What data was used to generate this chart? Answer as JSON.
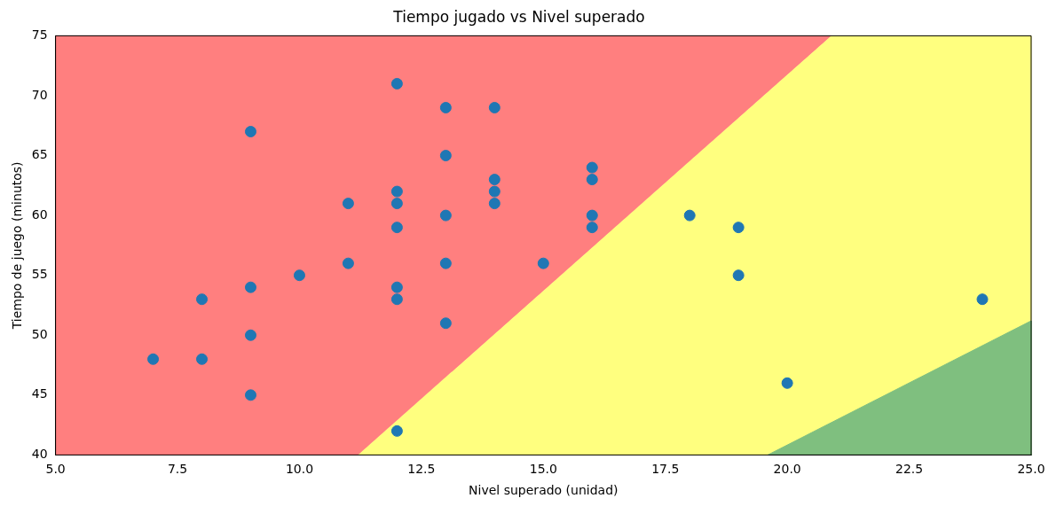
{
  "chart_data": {
    "type": "scatter",
    "title": "Tiempo jugado vs Nivel superado",
    "xlabel": "Nivel superado (unidad)",
    "ylabel": "Tiempo de juego (minutos)",
    "xlim": [
      5,
      25
    ],
    "ylim": [
      40,
      75
    ],
    "xticks": [
      {
        "value": 5,
        "label": "5.0"
      },
      {
        "value": 7.5,
        "label": "7.5"
      },
      {
        "value": 10,
        "label": "10.0"
      },
      {
        "value": 12.5,
        "label": "12.5"
      },
      {
        "value": 15,
        "label": "15.0"
      },
      {
        "value": 17.5,
        "label": "17.5"
      },
      {
        "value": 20,
        "label": "20.0"
      },
      {
        "value": 22.5,
        "label": "22.5"
      },
      {
        "value": 25,
        "label": "25.0"
      }
    ],
    "yticks": [
      40,
      45,
      50,
      55,
      60,
      65,
      70,
      75
    ],
    "grid": false,
    "legend": false,
    "series": [
      {
        "type": "area",
        "color": "#ff7f7f",
        "x": [
          5,
          11.2,
          20.9,
          5
        ],
        "values": [
          40,
          40,
          75,
          75
        ]
      },
      {
        "type": "area",
        "color": "#ffff7f",
        "x": [
          11.2,
          19.6,
          25,
          25,
          20.9
        ],
        "values": [
          40,
          40,
          51.2,
          75,
          75
        ]
      },
      {
        "type": "area",
        "color": "#7fbf7f",
        "x": [
          19.6,
          25,
          25
        ],
        "values": [
          40,
          51.2,
          40
        ]
      },
      {
        "type": "scatter",
        "color": "#1f77b4",
        "marker": "circle",
        "x": [
          7,
          8,
          8,
          9,
          9,
          9,
          9,
          10,
          11,
          11,
          12,
          12,
          12,
          12,
          12,
          12,
          12,
          13,
          13,
          13,
          13,
          13,
          14,
          14,
          14,
          14,
          15,
          16,
          16,
          16,
          16,
          18,
          19,
          19,
          20,
          24
        ],
        "values": [
          48,
          53,
          48,
          67,
          54,
          50,
          45,
          55,
          61,
          56,
          71,
          62,
          61,
          59,
          54,
          53,
          42,
          69,
          65,
          60,
          56,
          51,
          69,
          63,
          62,
          61,
          56,
          64,
          63,
          60,
          59,
          60,
          59,
          55,
          46,
          53
        ]
      }
    ]
  }
}
